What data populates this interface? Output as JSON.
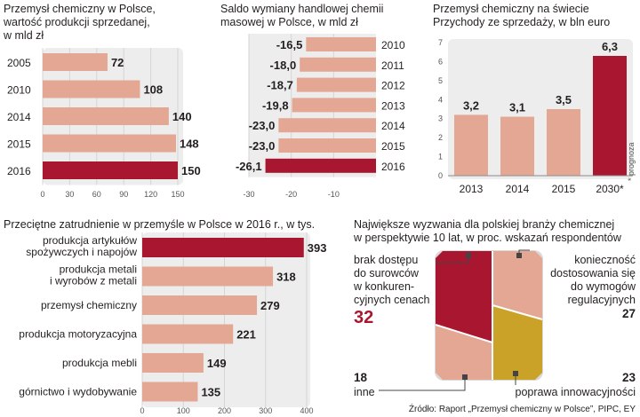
{
  "chart_data": [
    {
      "type": "bar",
      "orientation": "horizontal",
      "title": "Przemysł chemiczny w Polsce, wartość produkcji sprzedanej, w mld zł",
      "title_lines": [
        "Przemysł chemiczny w Polsce,",
        "wartość produkcji sprzedanej,",
        "w mld zł"
      ],
      "categories": [
        "2005",
        "2010",
        "2014",
        "2015",
        "2016"
      ],
      "values": [
        72,
        108,
        140,
        148,
        150
      ],
      "highlight": "2016",
      "xlim": [
        0,
        150
      ],
      "xticks": [
        0,
        30,
        60,
        90,
        120,
        150
      ],
      "grid": true
    },
    {
      "type": "bar",
      "orientation": "horizontal",
      "title": "Saldo wymiany handlowej chemii masowej w Polsce, w mld zł",
      "title_lines": [
        "Saldo wymiany handlowej chemii",
        "masowej w Polsce, w mld zł"
      ],
      "categories": [
        "2010",
        "2011",
        "2012",
        "2013",
        "2014",
        "2015",
        "2016"
      ],
      "values": [
        -16.5,
        -18.0,
        -18.7,
        -19.8,
        -23.0,
        -23.0,
        -26.1
      ],
      "labels": [
        "-16,5",
        "-18,0",
        "-18,7",
        "-19,8",
        "-23,0",
        "-23,0",
        "-26,1"
      ],
      "highlight": "2016",
      "xlim": [
        -30,
        0
      ],
      "xticks": [
        -30,
        -20,
        -10
      ],
      "grid": true
    },
    {
      "type": "bar",
      "orientation": "vertical",
      "title": "Przemysł chemiczny na świecie Przychody ze sprzedaży, w bln euro",
      "title_lines": [
        "Przemysł chemiczny na świecie",
        "Przychody ze sprzedaży, w bln euro"
      ],
      "categories": [
        "2013",
        "2014",
        "2015",
        "2030*"
      ],
      "values": [
        3.2,
        3.1,
        3.5,
        6.3
      ],
      "labels": [
        "3,2",
        "3,1",
        "3,5",
        "6,3"
      ],
      "highlight": "2030*",
      "ylim": [
        0,
        7
      ],
      "yticks": [
        0,
        1,
        2,
        3,
        4,
        5,
        6,
        7
      ],
      "footnote": "* prognoza"
    },
    {
      "type": "bar",
      "orientation": "horizontal",
      "title": "Przeciętne zatrudnienie w przemyśle w Polsce w 2016 r., w tys.",
      "categories": [
        [
          "produkcja artykułów",
          "spożywczych i napojów"
        ],
        [
          "produkcja metali",
          "i wyrobów z metali"
        ],
        [
          "przemysł chemiczny"
        ],
        [
          "produkcja motoryzacyjna"
        ],
        [
          "produkcja mebli"
        ],
        [
          "górnictwo i wydobywanie"
        ]
      ],
      "values": [
        393,
        318,
        279,
        221,
        149,
        135
      ],
      "highlight_index": 0,
      "xlim": [
        0,
        400
      ],
      "xticks": [
        0,
        100,
        200,
        300,
        400
      ],
      "grid": true
    },
    {
      "type": "mosaic",
      "title": "Największe wyzwania dla polskiej branży chemicznej w perspektywie 10 lat, w proc. wskazań respondentów",
      "title_lines": [
        "Największe wyzwania dla polskiej branży chemicznej",
        "w perspektywie 10 lat, w proc. wskazań respondentów"
      ],
      "segments": [
        {
          "label_lines": [
            "brak dostępu",
            "do surowców",
            "w konkuren-",
            "cyjnych cenach"
          ],
          "value": 32,
          "highlight": true
        },
        {
          "label_lines": [
            "konieczność",
            "dostosowania się",
            "do wymogów",
            "regulacyjnych"
          ],
          "value": 27
        },
        {
          "label_lines": [
            "poprawa innowacyjności"
          ],
          "value": 23
        },
        {
          "label_lines": [
            "inne"
          ],
          "value": 18
        }
      ]
    }
  ],
  "source": "Źródło: Raport „Przemysł chemiczny w Polsce”, PIPC, EY",
  "colors": {
    "bar": "#e3a793",
    "highlight": "#a8172f",
    "gold": "#c9a227",
    "shade": "#ededed"
  }
}
